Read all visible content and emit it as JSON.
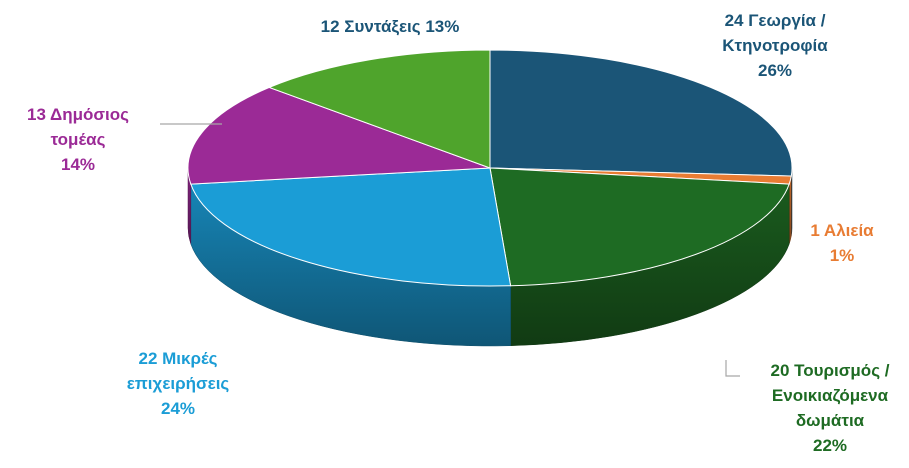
{
  "chart_data": {
    "type": "pie",
    "title": "",
    "categories": [
      "Γεωργία / Κτηνοτροφία",
      "Αλιεία",
      "Τουρισμός / Ενοικιαζόμενα δωμάτια",
      "Μικρές επιχειρήσεις",
      "Δημόσιος τομέας",
      "Συντάξεις"
    ],
    "values": [
      24,
      1,
      20,
      22,
      13,
      12
    ],
    "percents": [
      "26%",
      "1%",
      "22%",
      "24%",
      "14%",
      "13%"
    ],
    "colors": [
      "#1b5577",
      "#e87c33",
      "#1e6b23",
      "#1b9dd6",
      "#9b2a96",
      "#4fa42c"
    ],
    "labels": [
      {
        "lines": [
          "24 Γεωργία /",
          "Κτηνοτροφία",
          "26%"
        ],
        "color": "#1b5577"
      },
      {
        "lines": [
          "1 Αλιεία",
          "1%"
        ],
        "color": "#e87c33"
      },
      {
        "lines": [
          "20 Τουρισμός /",
          "Ενοικιαζόμενα",
          "δωμάτια",
          "22%"
        ],
        "color": "#1e6b23"
      },
      {
        "lines": [
          "22 Μικρές",
          "επιχειρήσεις",
          "24%"
        ],
        "color": "#1b9dd6"
      },
      {
        "lines": [
          "13 Δημόσιος",
          "τομέας",
          "14%"
        ],
        "color": "#9b2a96"
      },
      {
        "lines": [
          "12 Συντάξεις 13%"
        ],
        "color": "#1b5577"
      }
    ],
    "legend": "none"
  }
}
